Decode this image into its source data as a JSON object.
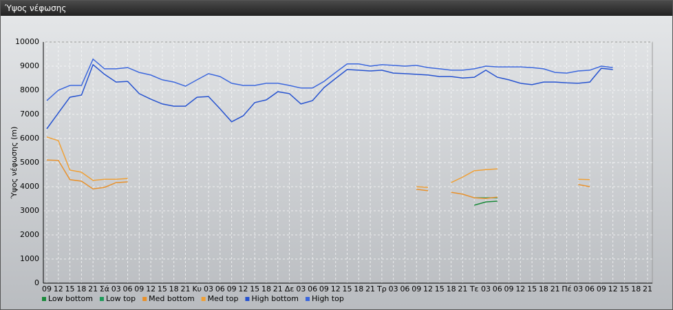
{
  "chart_data": {
    "type": "line",
    "title": "Ύψος νέφωσης",
    "y_label": "Ύψος νέφωσης (m)",
    "categories": [
      "09",
      "12",
      "15",
      "18",
      "21",
      "Σά",
      "03",
      "06",
      "09",
      "12",
      "15",
      "18",
      "21",
      "Κυ",
      "03",
      "06",
      "09",
      "12",
      "15",
      "18",
      "21",
      "Δε",
      "03",
      "06",
      "09",
      "12",
      "15",
      "18",
      "21",
      "Τρ",
      "03",
      "06",
      "09",
      "12",
      "15",
      "18",
      "21",
      "Τε",
      "03",
      "06",
      "09",
      "12",
      "15",
      "18",
      "21",
      "Πέ",
      "03",
      "06",
      "09",
      "12",
      "15",
      "18",
      "21"
    ],
    "ylim": [
      0,
      10000
    ],
    "yticks": [
      0,
      1000,
      2000,
      3000,
      4000,
      5000,
      6000,
      7000,
      8000,
      9000,
      10000
    ],
    "grid": true,
    "series": [
      {
        "name": "Low bottom",
        "color": "#1a8a3a",
        "values": [
          null,
          null,
          null,
          null,
          null,
          null,
          null,
          null,
          null,
          null,
          null,
          null,
          null,
          null,
          null,
          null,
          null,
          null,
          null,
          null,
          null,
          null,
          null,
          null,
          null,
          null,
          null,
          null,
          null,
          null,
          null,
          null,
          null,
          null,
          null,
          null,
          null,
          3230,
          3370,
          3400,
          null,
          null,
          null,
          null,
          null,
          null,
          null,
          null,
          null,
          null,
          null,
          null,
          null
        ]
      },
      {
        "name": "Low top",
        "color": "#1f9a5a",
        "values": [
          null,
          null,
          null,
          null,
          null,
          null,
          null,
          null,
          null,
          null,
          null,
          null,
          null,
          null,
          null,
          null,
          null,
          null,
          null,
          null,
          null,
          null,
          null,
          null,
          null,
          null,
          null,
          null,
          null,
          null,
          null,
          null,
          null,
          null,
          null,
          null,
          null,
          3540,
          3540,
          3540,
          null,
          null,
          null,
          null,
          null,
          null,
          null,
          null,
          null,
          null,
          null,
          null,
          null
        ]
      },
      {
        "name": "Med bottom",
        "color": "#e8902a",
        "values": [
          5110,
          5090,
          4290,
          4230,
          3910,
          3970,
          4170,
          4200,
          null,
          null,
          null,
          null,
          null,
          null,
          null,
          null,
          null,
          null,
          null,
          null,
          null,
          null,
          null,
          null,
          null,
          null,
          null,
          null,
          null,
          null,
          null,
          null,
          3890,
          3830,
          null,
          3770,
          3690,
          3540,
          3510,
          3570,
          null,
          null,
          null,
          null,
          null,
          null,
          4090,
          4000,
          null,
          null,
          null,
          null,
          null
        ]
      },
      {
        "name": "Med top",
        "color": "#f0a035",
        "values": [
          6060,
          5910,
          4690,
          4600,
          4260,
          4310,
          4310,
          4340,
          null,
          null,
          null,
          null,
          null,
          null,
          null,
          null,
          null,
          null,
          null,
          null,
          null,
          null,
          null,
          null,
          null,
          null,
          null,
          null,
          null,
          null,
          null,
          null,
          4000,
          3970,
          null,
          4170,
          4400,
          4660,
          4710,
          4740,
          null,
          null,
          null,
          null,
          null,
          null,
          4310,
          4290,
          null,
          null,
          null,
          null,
          null
        ]
      },
      {
        "name": "High bottom",
        "color": "#2552d0",
        "values": [
          6400,
          7060,
          7710,
          7800,
          9060,
          8660,
          8340,
          8370,
          7860,
          7630,
          7430,
          7340,
          7340,
          7710,
          7740,
          7230,
          6690,
          6940,
          7490,
          7600,
          7940,
          7860,
          7430,
          7570,
          8110,
          8490,
          8860,
          8830,
          8800,
          8830,
          8710,
          8690,
          8660,
          8630,
          8570,
          8570,
          8510,
          8540,
          8830,
          8540,
          8430,
          8290,
          8230,
          8340,
          8340,
          8310,
          8290,
          8340,
          8910,
          8860,
          null,
          null,
          null
        ]
      },
      {
        "name": "High top",
        "color": "#3a66dd",
        "values": [
          7570,
          8000,
          8200,
          8200,
          9290,
          8890,
          8890,
          8940,
          8740,
          8630,
          8430,
          8340,
          8170,
          8430,
          8690,
          8570,
          8290,
          8200,
          8200,
          8290,
          8290,
          8200,
          8090,
          8090,
          8370,
          8740,
          9090,
          9090,
          9000,
          9060,
          9030,
          9000,
          9030,
          8940,
          8890,
          8830,
          8830,
          8890,
          9000,
          8970,
          8970,
          8970,
          8940,
          8890,
          8740,
          8710,
          8800,
          8830,
          9000,
          8940,
          null,
          null,
          null
        ]
      }
    ]
  }
}
